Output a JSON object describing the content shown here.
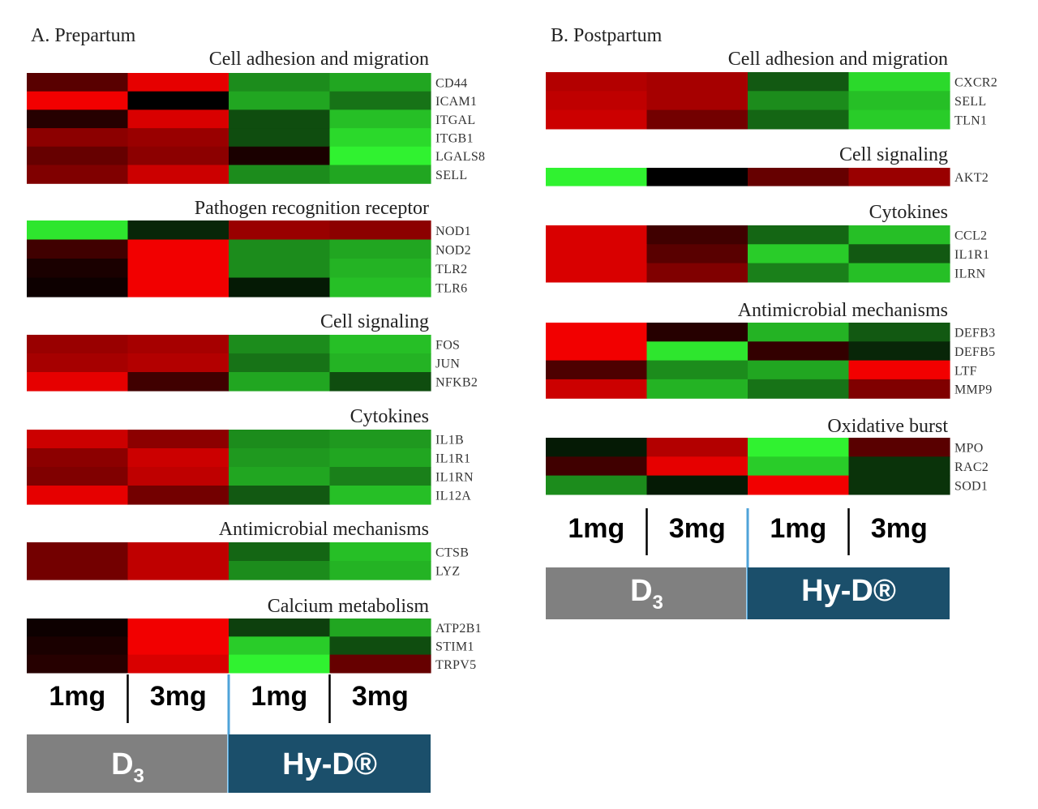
{
  "chart_data": [
    {
      "type": "heatmap",
      "title": "A. Prepartum",
      "columns": [
        {
          "dose": "1mg",
          "treatment": "D3"
        },
        {
          "dose": "3mg",
          "treatment": "D3"
        },
        {
          "dose": "1mg",
          "treatment": "Hy-D®"
        },
        {
          "dose": "3mg",
          "treatment": "Hy-D®"
        }
      ],
      "dose_labels": [
        "1mg",
        "3mg",
        "1mg",
        "3mg"
      ],
      "treatments": [
        {
          "label": "D",
          "subscript": "3",
          "color": "#808080"
        },
        {
          "label": "Hy-D®",
          "subscript": "",
          "color": "#1b4f6b"
        }
      ],
      "color_scale": {
        "low": "#33ff33",
        "mid": "#000000",
        "high": "#ff0000"
      },
      "groups": [
        {
          "title": "Cell adhesion and migration",
          "genes": [
            {
              "name": "CD44",
              "values": [
                0.35,
                0.9,
                -0.55,
                -0.65
              ]
            },
            {
              "name": "ICAM1",
              "values": [
                0.95,
                0.0,
                -0.65,
                -0.45
              ]
            },
            {
              "name": "ITGAL",
              "values": [
                0.15,
                0.85,
                -0.3,
                -0.75
              ]
            },
            {
              "name": "ITGB1",
              "values": [
                0.55,
                0.6,
                -0.3,
                -0.85
              ]
            },
            {
              "name": "LGALS8",
              "values": [
                0.4,
                0.55,
                0.1,
                -0.95
              ]
            },
            {
              "name": "SELL",
              "values": [
                0.5,
                0.8,
                -0.55,
                -0.65
              ]
            }
          ]
        },
        {
          "title": "Pathogen recognition receptor",
          "genes": [
            {
              "name": "NOD1",
              "values": [
                -0.9,
                -0.15,
                0.6,
                0.55
              ]
            },
            {
              "name": "NOD2",
              "values": [
                0.25,
                0.95,
                -0.55,
                -0.65
              ]
            },
            {
              "name": "TLR2",
              "values": [
                0.1,
                0.95,
                -0.55,
                -0.7
              ]
            },
            {
              "name": "TLR6",
              "values": [
                0.05,
                0.95,
                -0.1,
                -0.75
              ]
            }
          ]
        },
        {
          "title": "Cell signaling",
          "genes": [
            {
              "name": "FOS",
              "values": [
                0.6,
                0.65,
                -0.55,
                -0.75
              ]
            },
            {
              "name": "JUN",
              "values": [
                0.65,
                0.7,
                -0.45,
                -0.7
              ]
            },
            {
              "name": "NFKB2",
              "values": [
                0.9,
                0.25,
                -0.65,
                -0.3
              ]
            }
          ]
        },
        {
          "title": "Cytokines",
          "genes": [
            {
              "name": "IL1B",
              "values": [
                0.8,
                0.55,
                -0.55,
                -0.6
              ]
            },
            {
              "name": "IL1R1",
              "values": [
                0.55,
                0.8,
                -0.6,
                -0.65
              ]
            },
            {
              "name": "IL1RN",
              "values": [
                0.5,
                0.75,
                -0.65,
                -0.5
              ]
            },
            {
              "name": "IL12A",
              "values": [
                0.9,
                0.45,
                -0.35,
                -0.75
              ]
            }
          ]
        },
        {
          "title": "Antimicrobial mechanisms",
          "genes": [
            {
              "name": "CTSB",
              "values": [
                0.45,
                0.75,
                -0.4,
                -0.75
              ]
            },
            {
              "name": "LYZ",
              "values": [
                0.45,
                0.75,
                -0.55,
                -0.7
              ]
            }
          ]
        },
        {
          "title": "Calcium metabolism",
          "genes": [
            {
              "name": "ATP2B1",
              "values": [
                0.05,
                0.95,
                -0.25,
                -0.65
              ]
            },
            {
              "name": "STIM1",
              "values": [
                0.1,
                0.95,
                -0.8,
                -0.3
              ]
            },
            {
              "name": "TRPV5",
              "values": [
                0.15,
                0.85,
                -0.95,
                0.4
              ]
            }
          ]
        }
      ]
    },
    {
      "type": "heatmap",
      "title": "B. Postpartum",
      "columns": [
        {
          "dose": "1mg",
          "treatment": "D3"
        },
        {
          "dose": "3mg",
          "treatment": "D3"
        },
        {
          "dose": "1mg",
          "treatment": "Hy-D®"
        },
        {
          "dose": "3mg",
          "treatment": "Hy-D®"
        }
      ],
      "dose_labels": [
        "1mg",
        "3mg",
        "1mg",
        "3mg"
      ],
      "treatments": [
        {
          "label": "D",
          "subscript": "3",
          "color": "#808080"
        },
        {
          "label": "Hy-D®",
          "subscript": "",
          "color": "#1b4f6b"
        }
      ],
      "color_scale": {
        "low": "#33ff33",
        "mid": "#000000",
        "high": "#ff0000"
      },
      "groups": [
        {
          "title": "Cell adhesion and migration",
          "genes": [
            {
              "name": "CXCR2",
              "values": [
                0.7,
                0.65,
                -0.35,
                -0.85
              ]
            },
            {
              "name": "SELL",
              "values": [
                0.75,
                0.65,
                -0.55,
                -0.75
              ]
            },
            {
              "name": "TLN1",
              "values": [
                0.8,
                0.45,
                -0.4,
                -0.8
              ]
            }
          ]
        },
        {
          "title": "Cell signaling",
          "genes": [
            {
              "name": "AKT2",
              "values": [
                -0.95,
                0.0,
                0.4,
                0.6
              ]
            }
          ]
        },
        {
          "title": "Cytokines",
          "genes": [
            {
              "name": "CCL2",
              "values": [
                0.85,
                0.25,
                -0.4,
                -0.75
              ]
            },
            {
              "name": "IL1R1",
              "values": [
                0.85,
                0.35,
                -0.8,
                -0.35
              ]
            },
            {
              "name": "ILRN",
              "values": [
                0.85,
                0.5,
                -0.5,
                -0.75
              ]
            }
          ]
        },
        {
          "title": "Antimicrobial mechanisms",
          "genes": [
            {
              "name": "DEFB3",
              "values": [
                0.95,
                0.15,
                -0.7,
                -0.35
              ]
            },
            {
              "name": "DEFB5",
              "values": [
                0.95,
                -0.9,
                0.2,
                -0.15
              ]
            },
            {
              "name": "LTF",
              "values": [
                0.3,
                -0.55,
                -0.65,
                0.95
              ]
            },
            {
              "name": "MMP9",
              "values": [
                0.8,
                -0.7,
                -0.45,
                0.5
              ]
            }
          ]
        },
        {
          "title": "Oxidative burst",
          "genes": [
            {
              "name": "MPO",
              "values": [
                -0.1,
                0.7,
                -0.95,
                0.35
              ]
            },
            {
              "name": "RAC2",
              "values": [
                0.25,
                0.9,
                -0.8,
                -0.2
              ]
            },
            {
              "name": "SOD1",
              "values": [
                -0.55,
                -0.1,
                0.95,
                -0.2
              ]
            }
          ]
        }
      ]
    }
  ]
}
